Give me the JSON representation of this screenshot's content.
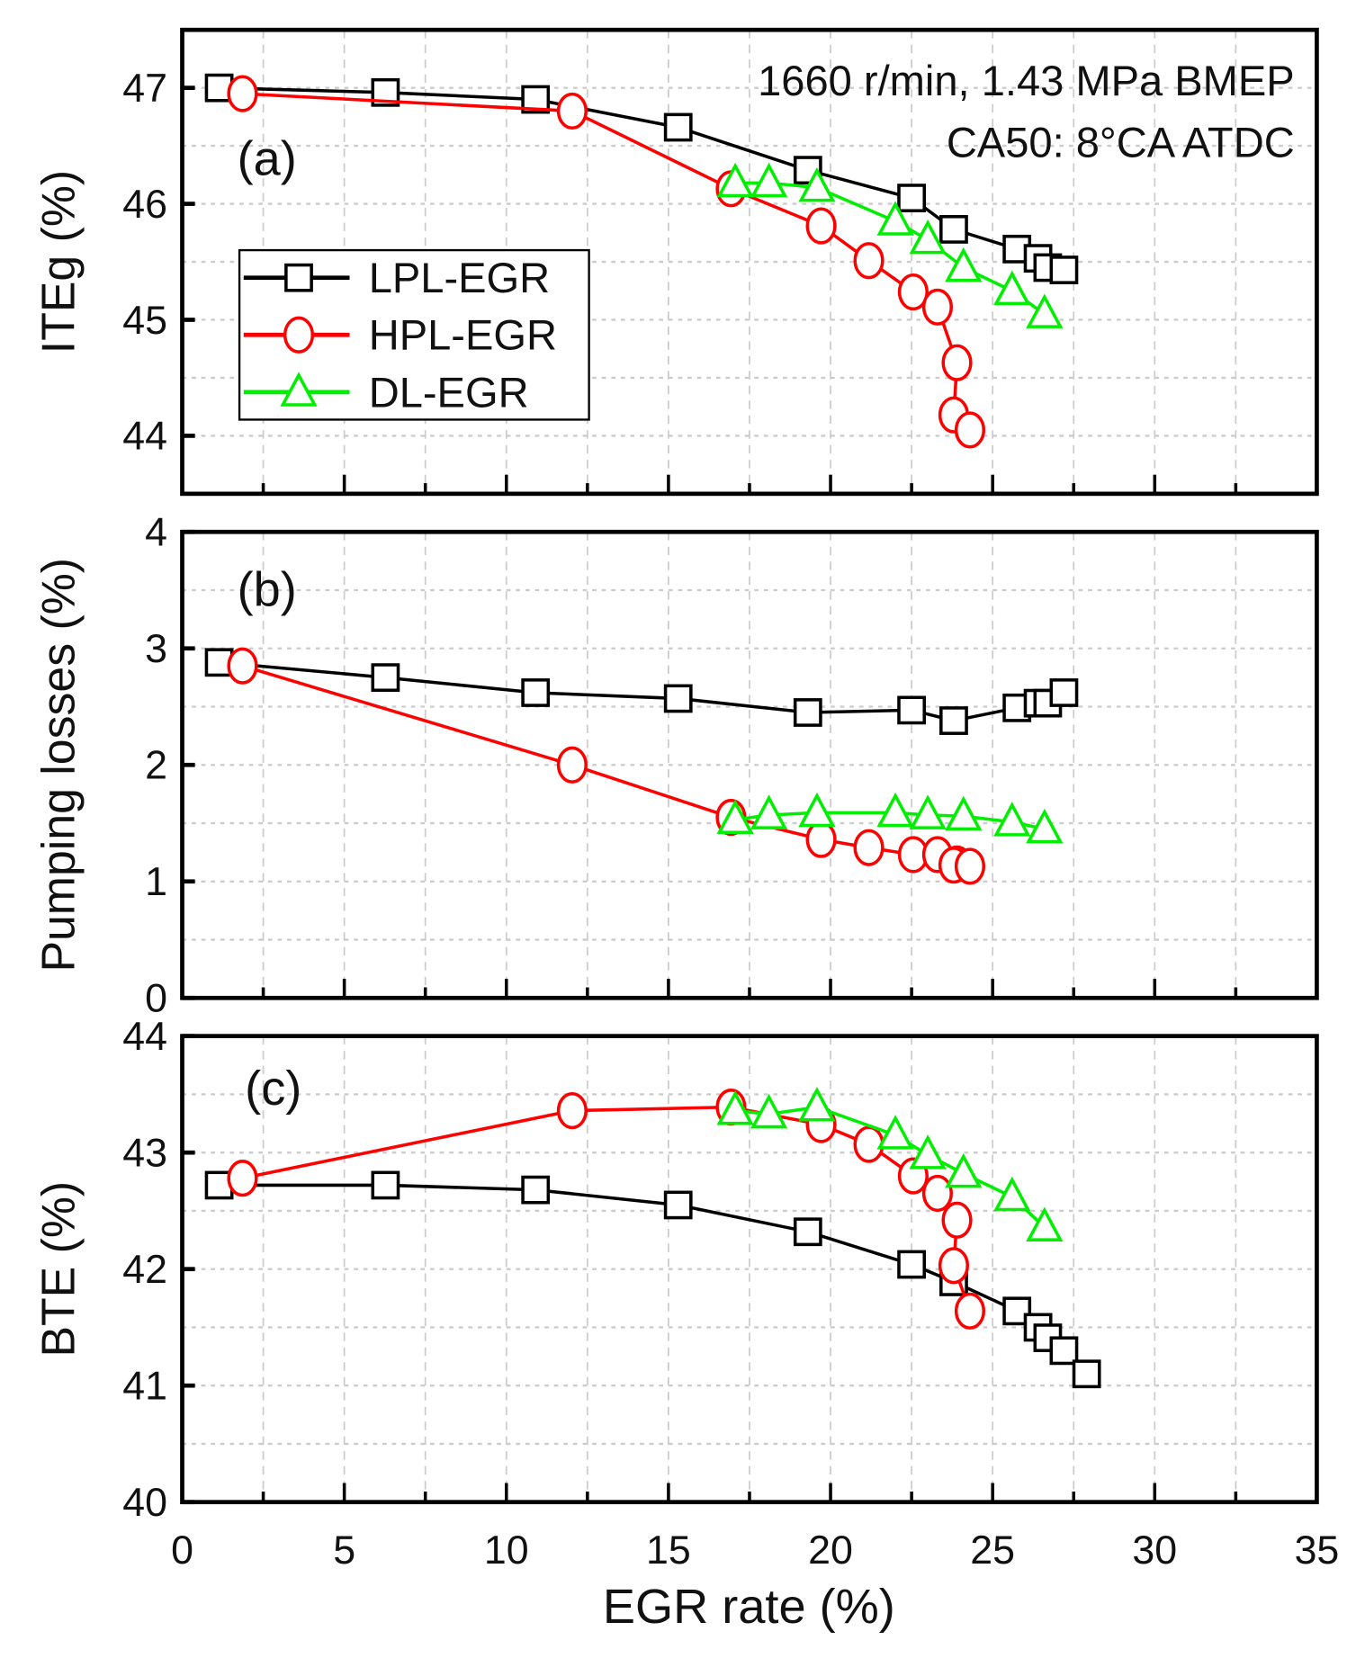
{
  "chart_data": [
    {
      "type": "line",
      "panel_label": "(a)",
      "ylabel": "ITEg (%)",
      "ylim": [
        43.5,
        47.5
      ],
      "yticks": [
        44,
        45,
        46,
        47
      ],
      "annotations": [
        "1660 r/min, 1.43 MPa BMEP",
        "CA50: 8°CA ATDC"
      ],
      "legend": {
        "placement": "left",
        "entries": [
          "LPL-EGR",
          "HPL-EGR",
          "DL-EGR"
        ]
      },
      "series": [
        {
          "name": "LPL-EGR",
          "color": "#000000",
          "marker": "square",
          "x": [
            1.14,
            6.27,
            10.9,
            15.3,
            19.3,
            22.5,
            23.8,
            25.75,
            26.4,
            26.7,
            27.2
          ],
          "y": [
            47.0,
            46.96,
            46.9,
            46.66,
            46.29,
            46.05,
            45.78,
            45.61,
            45.53,
            45.45,
            45.43
          ]
        },
        {
          "name": "HPL-EGR",
          "color": "#ff0000",
          "marker": "circle",
          "x": [
            1.86,
            12.03,
            16.93,
            19.71,
            21.18,
            22.55,
            23.3,
            23.9,
            23.8,
            24.3
          ],
          "y": [
            46.95,
            46.8,
            46.13,
            45.81,
            45.51,
            45.24,
            45.11,
            44.63,
            44.18,
            44.05
          ]
        },
        {
          "name": "DL-EGR",
          "color": "#00ee00",
          "marker": "triangle",
          "x": [
            17.06,
            18.1,
            19.58,
            22.0,
            23.0,
            24.1,
            25.6,
            26.6
          ],
          "y": [
            46.18,
            46.18,
            46.14,
            45.85,
            45.69,
            45.45,
            45.25,
            45.05
          ]
        }
      ]
    },
    {
      "type": "line",
      "panel_label": "(b)",
      "ylabel": "Pumping losses (%)",
      "ylim": [
        0,
        4
      ],
      "yticks": [
        0,
        1,
        2,
        3,
        4
      ],
      "series": [
        {
          "name": "LPL-EGR",
          "color": "#000000",
          "marker": "square",
          "x": [
            1.14,
            6.27,
            10.9,
            15.3,
            19.3,
            22.5,
            23.8,
            25.75,
            26.4,
            26.7,
            27.2
          ],
          "y": [
            2.88,
            2.75,
            2.62,
            2.57,
            2.45,
            2.47,
            2.38,
            2.49,
            2.53,
            2.53,
            2.62
          ]
        },
        {
          "name": "HPL-EGR",
          "color": "#ff0000",
          "marker": "circle",
          "x": [
            1.86,
            12.03,
            16.93,
            19.71,
            21.18,
            22.55,
            23.3,
            23.9,
            23.8,
            24.3
          ],
          "y": [
            2.85,
            2.0,
            1.55,
            1.36,
            1.29,
            1.23,
            1.23,
            1.15,
            1.14,
            1.13
          ]
        },
        {
          "name": "DL-EGR",
          "color": "#00ee00",
          "marker": "triangle",
          "x": [
            17.06,
            18.1,
            19.58,
            22.0,
            23.0,
            24.1,
            25.6,
            26.6
          ],
          "y": [
            1.53,
            1.57,
            1.59,
            1.59,
            1.57,
            1.56,
            1.51,
            1.45
          ]
        }
      ]
    },
    {
      "type": "line",
      "panel_label": "(c)",
      "ylabel": "BTE (%)",
      "ylim": [
        40,
        44
      ],
      "yticks": [
        40,
        41,
        42,
        43,
        44
      ],
      "xlabel": "EGR rate (%)",
      "xlim": [
        0,
        35
      ],
      "xticks": [
        0,
        5,
        10,
        15,
        20,
        25,
        30,
        35
      ],
      "series": [
        {
          "name": "LPL-EGR",
          "color": "#000000",
          "marker": "square",
          "x": [
            1.14,
            6.27,
            10.9,
            15.3,
            19.3,
            22.5,
            23.8,
            25.75,
            26.4,
            26.7,
            27.2,
            27.9
          ],
          "y": [
            42.72,
            42.72,
            42.68,
            42.55,
            42.32,
            42.04,
            41.89,
            41.64,
            41.5,
            41.41,
            41.3,
            41.1
          ]
        },
        {
          "name": "HPL-EGR",
          "color": "#ff0000",
          "marker": "circle",
          "x": [
            1.86,
            12.03,
            16.93,
            19.71,
            21.18,
            22.55,
            23.3,
            23.9,
            23.8,
            24.3
          ],
          "y": [
            42.78,
            43.36,
            43.39,
            43.24,
            43.07,
            42.8,
            42.65,
            42.42,
            42.03,
            41.64
          ]
        },
        {
          "name": "DL-EGR",
          "color": "#00ee00",
          "marker": "triangle",
          "x": [
            17.06,
            18.1,
            19.58,
            22.0,
            23.0,
            24.1,
            25.6,
            26.6
          ],
          "y": [
            43.36,
            43.33,
            43.39,
            43.15,
            42.98,
            42.82,
            42.62,
            42.36
          ]
        }
      ]
    }
  ]
}
